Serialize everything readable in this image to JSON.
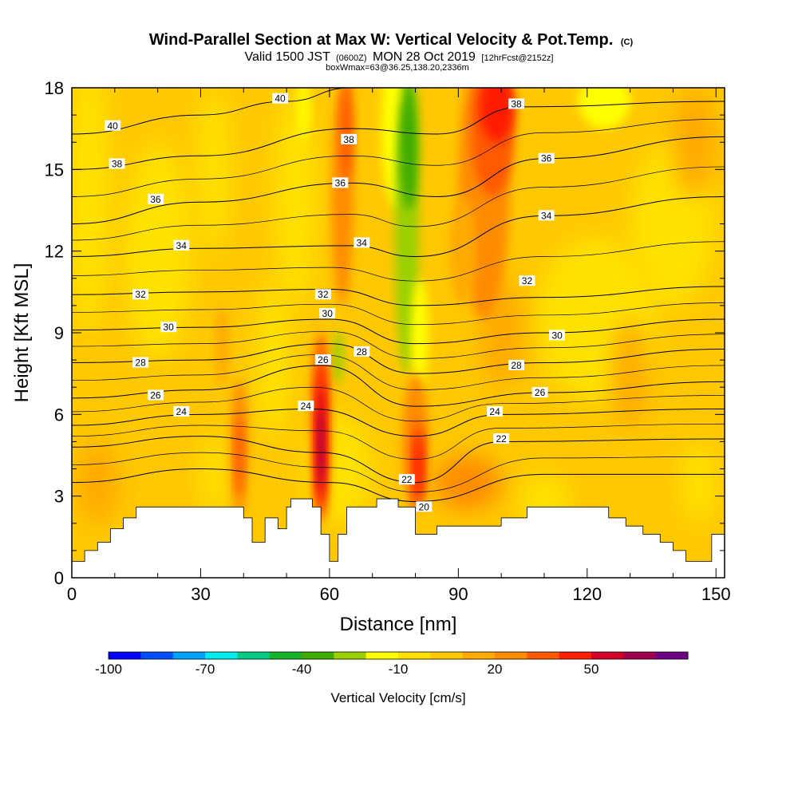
{
  "chart_data": {
    "type": "heatmap",
    "title": "Wind-Parallel Section at Max W: Vertical Velocity & Pot.Temp.",
    "title_mark": "(C)",
    "subtitle": {
      "valid_prefix": "Valid 1500 JST",
      "utc": "(0600Z)",
      "date": "MON 28 Oct 2019",
      "forecast": "[12hrFcst@2152z]"
    },
    "subtitle2": "boxWmax=63@36.25,138.20,2336m",
    "xlabel": "Distance [nm]",
    "ylabel": "Height [Kft MSL]",
    "xlim": [
      0,
      152
    ],
    "ylim": [
      0,
      18
    ],
    "xticks": [
      0,
      30,
      60,
      90,
      120,
      150
    ],
    "yticks": [
      0,
      3,
      6,
      9,
      12,
      15,
      18
    ],
    "colorbar": {
      "label": "Vertical Velocity [cm/s]",
      "ticks": [
        -100,
        -70,
        -40,
        -10,
        20,
        50
      ],
      "bins": [
        -100,
        -90,
        -80,
        -70,
        -60,
        -50,
        -40,
        -30,
        -20,
        -10,
        0,
        10,
        20,
        30,
        40,
        50,
        60,
        70
      ],
      "colors": [
        "#0000ff",
        "#0050ff",
        "#00a0ff",
        "#00ebeb",
        "#00cd82",
        "#17b32a",
        "#3fac00",
        "#9ad000",
        "#ffff00",
        "#ffe100",
        "#ffc800",
        "#ffaa00",
        "#ff8c00",
        "#ff5a00",
        "#ff1e00",
        "#d20028",
        "#a00050",
        "#6e0082"
      ]
    },
    "features": [
      {
        "kind": "updraft",
        "x": 58,
        "y_range": [
          3,
          7.5
        ],
        "max_w": 63
      },
      {
        "kind": "updraft",
        "x": 80,
        "y_range": [
          3,
          6
        ],
        "max_w": 45
      },
      {
        "kind": "updraft",
        "x": 96,
        "y_range": [
          12,
          18
        ],
        "max_w": 45
      },
      {
        "kind": "downdraft",
        "x_range": [
          73,
          85
        ],
        "y_range": [
          8,
          18
        ],
        "min_w": -40
      }
    ],
    "isentropes": [
      {
        "theta": 20,
        "heights": [
          [
            0,
            3.5
          ],
          [
            30,
            4.0
          ],
          [
            60,
            3.5
          ],
          [
            80,
            2.8
          ],
          [
            110,
            3.8
          ],
          [
            152,
            3.8
          ]
        ]
      },
      {
        "theta": 22,
        "heights": [
          [
            0,
            4.8
          ],
          [
            30,
            5.2
          ],
          [
            58,
            4.6
          ],
          [
            80,
            3.5
          ],
          [
            100,
            5.0
          ],
          [
            152,
            5.1
          ]
        ]
      },
      {
        "theta": 24,
        "heights": [
          [
            0,
            5.6
          ],
          [
            30,
            6.0
          ],
          [
            56,
            6.2
          ],
          [
            80,
            5.2
          ],
          [
            100,
            6.0
          ],
          [
            152,
            6.2
          ]
        ]
      },
      {
        "theta": 26,
        "heights": [
          [
            0,
            6.6
          ],
          [
            30,
            6.9
          ],
          [
            58,
            7.8
          ],
          [
            80,
            6.3
          ],
          [
            110,
            6.8
          ],
          [
            152,
            7.2
          ]
        ]
      },
      {
        "theta": 28,
        "heights": [
          [
            0,
            7.9
          ],
          [
            30,
            8.0
          ],
          [
            60,
            8.6
          ],
          [
            80,
            7.5
          ],
          [
            110,
            7.9
          ],
          [
            152,
            8.4
          ]
        ]
      },
      {
        "theta": 30,
        "heights": [
          [
            0,
            9.1
          ],
          [
            30,
            9.2
          ],
          [
            60,
            9.5
          ],
          [
            80,
            8.6
          ],
          [
            110,
            9.0
          ],
          [
            152,
            9.5
          ]
        ]
      },
      {
        "theta": 32,
        "heights": [
          [
            0,
            10.4
          ],
          [
            30,
            10.5
          ],
          [
            60,
            10.6
          ],
          [
            80,
            10.0
          ],
          [
            110,
            10.3
          ],
          [
            152,
            10.7
          ]
        ]
      },
      {
        "theta": 34,
        "heights": [
          [
            0,
            11.8
          ],
          [
            30,
            12.1
          ],
          [
            65,
            12.2
          ],
          [
            80,
            11.8
          ],
          [
            110,
            13.3
          ],
          [
            152,
            14.0
          ]
        ]
      },
      {
        "theta": 36,
        "heights": [
          [
            0,
            13.0
          ],
          [
            30,
            13.8
          ],
          [
            65,
            14.5
          ],
          [
            85,
            14.0
          ],
          [
            110,
            15.4
          ],
          [
            152,
            16.2
          ]
        ]
      },
      {
        "theta": 38,
        "heights": [
          [
            0,
            15.0
          ],
          [
            30,
            15.5
          ],
          [
            65,
            16.5
          ],
          [
            85,
            16.3
          ],
          [
            105,
            17.3
          ],
          [
            152,
            17.5
          ]
        ]
      },
      {
        "theta": 40,
        "heights": [
          [
            0,
            16.3
          ],
          [
            30,
            17.0
          ],
          [
            50,
            17.5
          ],
          [
            65,
            18.0
          ]
        ]
      }
    ],
    "contour_labels": [
      {
        "text": "40",
        "x": 9.5,
        "y": 16.6
      },
      {
        "text": "40",
        "x": 48.5,
        "y": 17.6
      },
      {
        "text": "38",
        "x": 10.5,
        "y": 15.2
      },
      {
        "text": "38",
        "x": 64.5,
        "y": 16.1
      },
      {
        "text": "38",
        "x": 103.5,
        "y": 17.4
      },
      {
        "text": "36",
        "x": 19.5,
        "y": 13.9
      },
      {
        "text": "36",
        "x": 62.5,
        "y": 14.5
      },
      {
        "text": "36",
        "x": 110.5,
        "y": 15.4
      },
      {
        "text": "34",
        "x": 25.5,
        "y": 12.2
      },
      {
        "text": "34",
        "x": 67.5,
        "y": 12.3
      },
      {
        "text": "34",
        "x": 110.5,
        "y": 13.3
      },
      {
        "text": "32",
        "x": 16.0,
        "y": 10.4
      },
      {
        "text": "32",
        "x": 58.5,
        "y": 10.4
      },
      {
        "text": "32",
        "x": 106.0,
        "y": 10.9
      },
      {
        "text": "30",
        "x": 22.5,
        "y": 9.2
      },
      {
        "text": "30",
        "x": 59.5,
        "y": 9.7
      },
      {
        "text": "30",
        "x": 113.0,
        "y": 8.9
      },
      {
        "text": "28",
        "x": 16.0,
        "y": 7.9
      },
      {
        "text": "28",
        "x": 67.5,
        "y": 8.3
      },
      {
        "text": "28",
        "x": 103.5,
        "y": 7.8
      },
      {
        "text": "26",
        "x": 19.5,
        "y": 6.7
      },
      {
        "text": "26",
        "x": 58.5,
        "y": 8.0
      },
      {
        "text": "26",
        "x": 109.0,
        "y": 6.8
      },
      {
        "text": "24",
        "x": 25.5,
        "y": 6.1
      },
      {
        "text": "24",
        "x": 54.5,
        "y": 6.3
      },
      {
        "text": "24",
        "x": 98.5,
        "y": 6.1
      },
      {
        "text": "22",
        "x": 100.0,
        "y": 5.1
      },
      {
        "text": "22",
        "x": 78.0,
        "y": 3.6
      },
      {
        "text": "20",
        "x": 82.0,
        "y": 2.6
      }
    ]
  }
}
